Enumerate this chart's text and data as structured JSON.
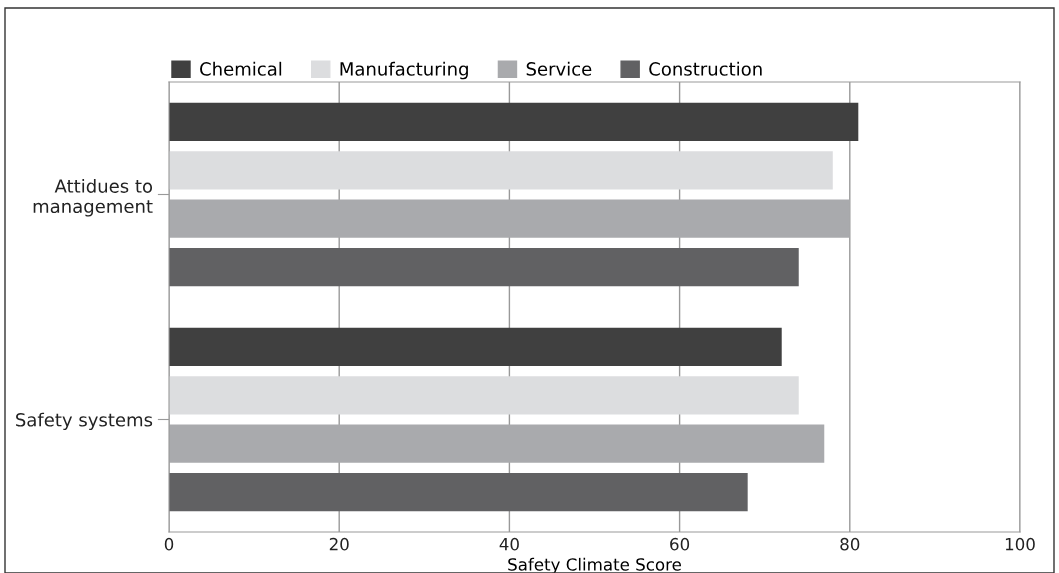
{
  "chart_data": {
    "type": "bar",
    "orientation": "horizontal",
    "xlabel": "Safety Climate Score",
    "categories": [
      "Attidues to\nmanagement",
      "Safety systems"
    ],
    "series": [
      {
        "name": "Chemical",
        "color": "#404040",
        "values": [
          81,
          72
        ]
      },
      {
        "name": "Manufacturing",
        "color": "#dcdddf",
        "values": [
          78,
          74
        ]
      },
      {
        "name": "Service",
        "color": "#a9aaad",
        "values": [
          80,
          77
        ]
      },
      {
        "name": "Construction",
        "color": "#616163",
        "values": [
          74,
          68
        ]
      }
    ],
    "xlim": [
      0,
      100
    ],
    "xticks": [
      0,
      20,
      40,
      60,
      80,
      100
    ],
    "grid": "x",
    "legend": "top left"
  }
}
